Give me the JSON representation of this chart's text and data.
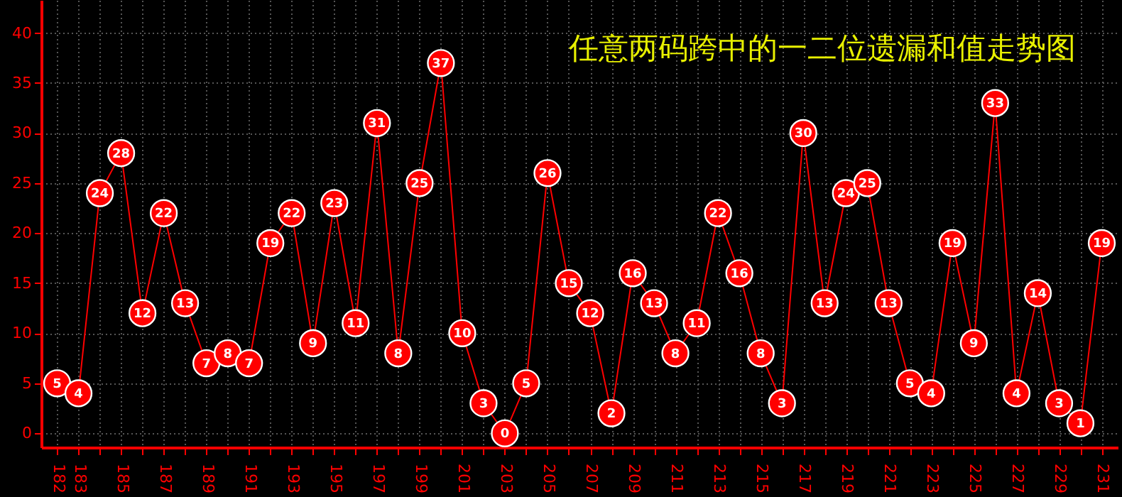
{
  "chart_data": {
    "type": "line",
    "title": "任意两码跨中的一二位遗漏和值走势图",
    "categories": [
      "182",
      "183",
      null,
      "185",
      null,
      "187",
      null,
      "189",
      null,
      "191",
      null,
      "193",
      null,
      "195",
      null,
      "197",
      null,
      "199",
      null,
      "201",
      null,
      "203",
      null,
      "205",
      null,
      "207",
      null,
      "209",
      null,
      "211",
      null,
      "213",
      null,
      "215",
      null,
      "217",
      null,
      "219",
      null,
      "221",
      null,
      "223",
      null,
      "225",
      null,
      "227",
      null,
      "229",
      null,
      "231"
    ],
    "series": [
      {
        "color": "#ff0000",
        "values": [
          5,
          4,
          24,
          28,
          12,
          22,
          13,
          7,
          8,
          7,
          19,
          22,
          9,
          23,
          11,
          31,
          8,
          25,
          37,
          10,
          3,
          0,
          5,
          26,
          15,
          12,
          2,
          16,
          13,
          8,
          11,
          22,
          16,
          8,
          3,
          30,
          13,
          24,
          25,
          13,
          5,
          4,
          19,
          9,
          33,
          4,
          14,
          3,
          1,
          19
        ]
      }
    ],
    "ylim": [
      -1.4,
      43.3
    ],
    "yticks": [
      0,
      5,
      10,
      15,
      20,
      25,
      30,
      35,
      40
    ],
    "grid": true,
    "marker": "circle",
    "data_labels": true,
    "line_style": "solid"
  }
}
